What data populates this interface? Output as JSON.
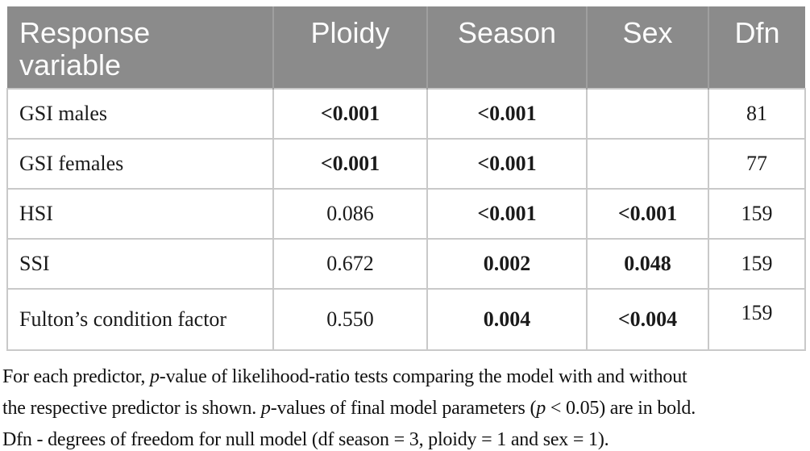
{
  "table": {
    "columns": [
      {
        "id": "response",
        "label": "Response variable"
      },
      {
        "id": "ploidy",
        "label": "Ploidy"
      },
      {
        "id": "season",
        "label": "Season"
      },
      {
        "id": "sex",
        "label": "Sex"
      },
      {
        "id": "dfn",
        "label": "Dfn"
      }
    ],
    "rows": [
      {
        "response": "GSI males",
        "ploidy": {
          "text": "<0.001",
          "bold": true
        },
        "season": {
          "text": "<0.001",
          "bold": true
        },
        "sex": {
          "text": "",
          "bold": false
        },
        "dfn": {
          "text": "81",
          "bold": false
        }
      },
      {
        "response": "GSI females",
        "ploidy": {
          "text": "<0.001",
          "bold": true
        },
        "season": {
          "text": "<0.001",
          "bold": true
        },
        "sex": {
          "text": "",
          "bold": false
        },
        "dfn": {
          "text": "77",
          "bold": false
        }
      },
      {
        "response": "HSI",
        "ploidy": {
          "text": "0.086",
          "bold": false
        },
        "season": {
          "text": "<0.001",
          "bold": true
        },
        "sex": {
          "text": "<0.001",
          "bold": true
        },
        "dfn": {
          "text": "159",
          "bold": false
        }
      },
      {
        "response": "SSI",
        "ploidy": {
          "text": "0.672",
          "bold": false
        },
        "season": {
          "text": "0.002",
          "bold": true
        },
        "sex": {
          "text": "0.048",
          "bold": true
        },
        "dfn": {
          "text": "159",
          "bold": false
        }
      },
      {
        "response": "Fulton’s condition factor",
        "ploidy": {
          "text": "0.550",
          "bold": false
        },
        "season": {
          "text": "0.004",
          "bold": true
        },
        "sex": {
          "text": "<0.004",
          "bold": true
        },
        "dfn": {
          "text": "159",
          "bold": false
        }
      }
    ]
  },
  "footnote": {
    "lines": [
      [
        {
          "text": "For each predictor, "
        },
        {
          "text": "p",
          "italic": true
        },
        {
          "text": "-value of likelihood-ratio tests comparing the model with and without"
        }
      ],
      [
        {
          "text": "the respective predictor is shown. "
        },
        {
          "text": "p",
          "italic": true
        },
        {
          "text": "-values of final model parameters ("
        },
        {
          "text": "p",
          "italic": true
        },
        {
          "text": " < 0.05) are in bold."
        }
      ],
      [
        {
          "text": "Dfn - degrees of freedom for null model (df season = 3, ploidy = 1 and sex = 1)."
        }
      ]
    ]
  },
  "colors": {
    "header_bg": "#8b8b8b",
    "header_text": "#fcfcfc",
    "header_sep": "#9f9f9f",
    "grid": "#c9c9c9",
    "text": "#1a1a1a"
  }
}
